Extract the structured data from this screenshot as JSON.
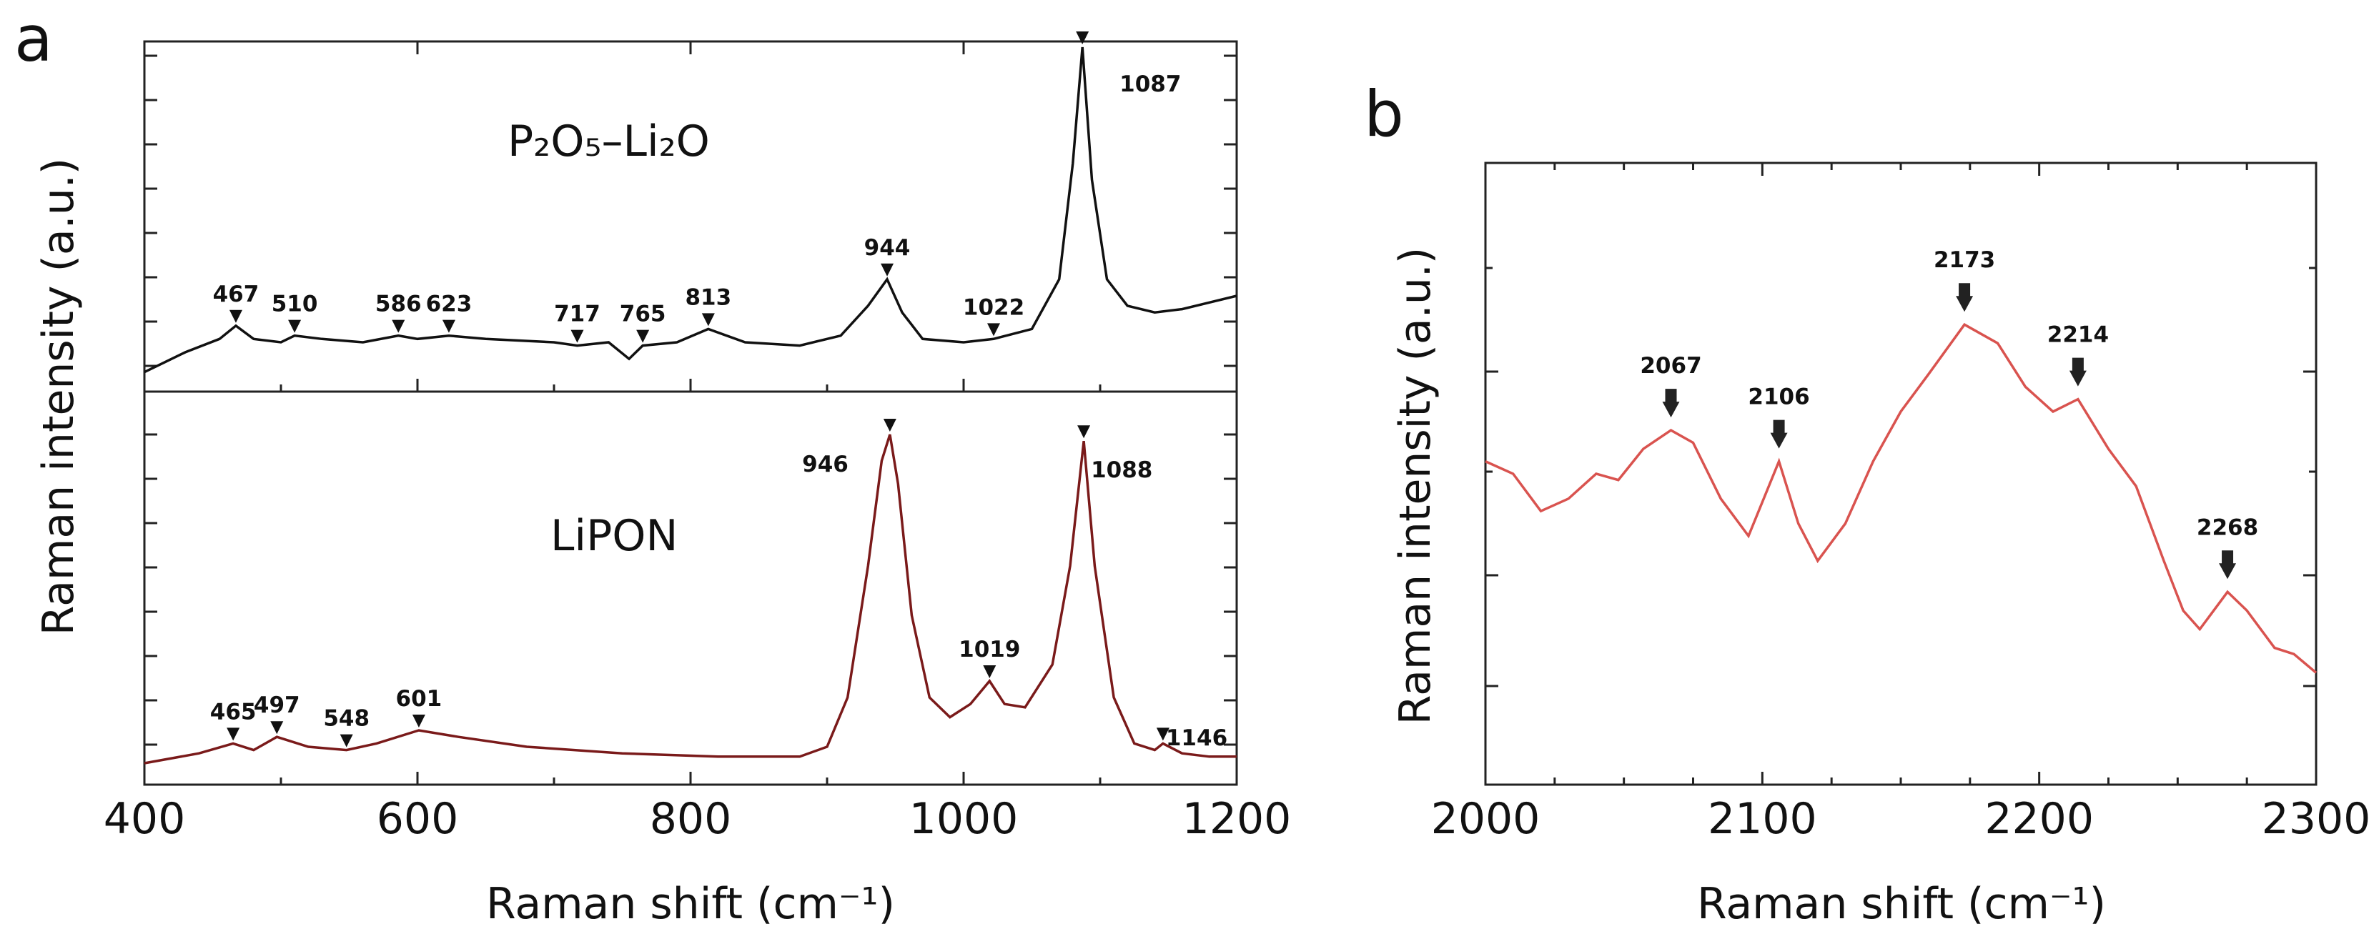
{
  "chart_data": [
    {
      "panel": "a",
      "type": "line",
      "xlabel": "Raman shift (cm⁻¹)",
      "ylabel": "Raman intensity (a.u.)",
      "xlim": [
        400,
        1200
      ],
      "xticks": [
        "400",
        "600",
        "800",
        "1000",
        "1200"
      ],
      "series": [
        {
          "name": "P₂O₅–Li₂O",
          "color": "#111111",
          "peaks": [
            {
              "x": 467,
              "label": "467"
            },
            {
              "x": 510,
              "label": "510"
            },
            {
              "x": 586,
              "label": "586"
            },
            {
              "x": 623,
              "label": "623"
            },
            {
              "x": 717,
              "label": "717"
            },
            {
              "x": 765,
              "label": "765"
            },
            {
              "x": 813,
              "label": "813"
            },
            {
              "x": 944,
              "label": "944"
            },
            {
              "x": 1022,
              "label": "1022"
            },
            {
              "x": 1087,
              "label": "1087"
            }
          ],
          "points": [
            [
              400,
              0.02
            ],
            [
              430,
              0.08
            ],
            [
              455,
              0.12
            ],
            [
              467,
              0.16
            ],
            [
              480,
              0.12
            ],
            [
              500,
              0.11
            ],
            [
              510,
              0.13
            ],
            [
              530,
              0.12
            ],
            [
              560,
              0.11
            ],
            [
              586,
              0.13
            ],
            [
              600,
              0.12
            ],
            [
              623,
              0.13
            ],
            [
              650,
              0.12
            ],
            [
              700,
              0.11
            ],
            [
              717,
              0.1
            ],
            [
              740,
              0.11
            ],
            [
              755,
              0.06
            ],
            [
              765,
              0.1
            ],
            [
              790,
              0.11
            ],
            [
              813,
              0.15
            ],
            [
              840,
              0.11
            ],
            [
              880,
              0.1
            ],
            [
              910,
              0.13
            ],
            [
              930,
              0.22
            ],
            [
              944,
              0.3
            ],
            [
              955,
              0.2
            ],
            [
              970,
              0.12
            ],
            [
              1000,
              0.11
            ],
            [
              1022,
              0.12
            ],
            [
              1050,
              0.15
            ],
            [
              1070,
              0.3
            ],
            [
              1080,
              0.65
            ],
            [
              1087,
              1.0
            ],
            [
              1094,
              0.6
            ],
            [
              1105,
              0.3
            ],
            [
              1120,
              0.22
            ],
            [
              1140,
              0.2
            ],
            [
              1160,
              0.21
            ],
            [
              1180,
              0.23
            ],
            [
              1200,
              0.25
            ]
          ]
        },
        {
          "name": "LiPON",
          "color": "#7a1a1a",
          "peaks": [
            {
              "x": 465,
              "label": "465"
            },
            {
              "x": 497,
              "label": "497"
            },
            {
              "x": 548,
              "label": "548"
            },
            {
              "x": 601,
              "label": "601"
            },
            {
              "x": 946,
              "label": "946"
            },
            {
              "x": 1019,
              "label": "1019"
            },
            {
              "x": 1088,
              "label": "1088"
            },
            {
              "x": 1146,
              "label": "1146"
            }
          ],
          "points": [
            [
              400,
              0.0
            ],
            [
              440,
              0.03
            ],
            [
              465,
              0.06
            ],
            [
              480,
              0.04
            ],
            [
              497,
              0.08
            ],
            [
              520,
              0.05
            ],
            [
              548,
              0.04
            ],
            [
              570,
              0.06
            ],
            [
              601,
              0.1
            ],
            [
              630,
              0.08
            ],
            [
              680,
              0.05
            ],
            [
              750,
              0.03
            ],
            [
              820,
              0.02
            ],
            [
              880,
              0.02
            ],
            [
              900,
              0.05
            ],
            [
              915,
              0.2
            ],
            [
              930,
              0.6
            ],
            [
              940,
              0.92
            ],
            [
              946,
              1.0
            ],
            [
              952,
              0.85
            ],
            [
              962,
              0.45
            ],
            [
              975,
              0.2
            ],
            [
              990,
              0.14
            ],
            [
              1005,
              0.18
            ],
            [
              1019,
              0.25
            ],
            [
              1030,
              0.18
            ],
            [
              1045,
              0.17
            ],
            [
              1065,
              0.3
            ],
            [
              1078,
              0.6
            ],
            [
              1088,
              0.98
            ],
            [
              1096,
              0.6
            ],
            [
              1110,
              0.2
            ],
            [
              1125,
              0.06
            ],
            [
              1140,
              0.04
            ],
            [
              1146,
              0.06
            ],
            [
              1160,
              0.03
            ],
            [
              1180,
              0.02
            ],
            [
              1200,
              0.02
            ]
          ]
        }
      ]
    },
    {
      "panel": "b",
      "type": "line",
      "xlabel": "Raman shift (cm⁻¹)",
      "ylabel": "Raman intensity (a.u.)",
      "xlim": [
        2000,
        2300
      ],
      "xticks": [
        "2000",
        "2100",
        "2200",
        "2300"
      ],
      "series": [
        {
          "color": "#d9534f",
          "peaks": [
            {
              "x": 2067,
              "label": "2067"
            },
            {
              "x": 2106,
              "label": "2106"
            },
            {
              "x": 2173,
              "label": "2173"
            },
            {
              "x": 2214,
              "label": "2214"
            },
            {
              "x": 2268,
              "label": "2268"
            }
          ],
          "points": [
            [
              2000,
              0.52
            ],
            [
              2010,
              0.5
            ],
            [
              2020,
              0.44
            ],
            [
              2030,
              0.46
            ],
            [
              2040,
              0.5
            ],
            [
              2048,
              0.49
            ],
            [
              2057,
              0.54
            ],
            [
              2067,
              0.57
            ],
            [
              2075,
              0.55
            ],
            [
              2085,
              0.46
            ],
            [
              2095,
              0.4
            ],
            [
              2106,
              0.52
            ],
            [
              2113,
              0.42
            ],
            [
              2120,
              0.36
            ],
            [
              2130,
              0.42
            ],
            [
              2140,
              0.52
            ],
            [
              2150,
              0.6
            ],
            [
              2160,
              0.66
            ],
            [
              2173,
              0.74
            ],
            [
              2185,
              0.71
            ],
            [
              2195,
              0.64
            ],
            [
              2205,
              0.6
            ],
            [
              2214,
              0.62
            ],
            [
              2225,
              0.54
            ],
            [
              2235,
              0.48
            ],
            [
              2245,
              0.36
            ],
            [
              2252,
              0.28
            ],
            [
              2258,
              0.25
            ],
            [
              2263,
              0.28
            ],
            [
              2268,
              0.31
            ],
            [
              2275,
              0.28
            ],
            [
              2285,
              0.22
            ],
            [
              2292,
              0.21
            ],
            [
              2300,
              0.18
            ]
          ]
        }
      ]
    }
  ]
}
